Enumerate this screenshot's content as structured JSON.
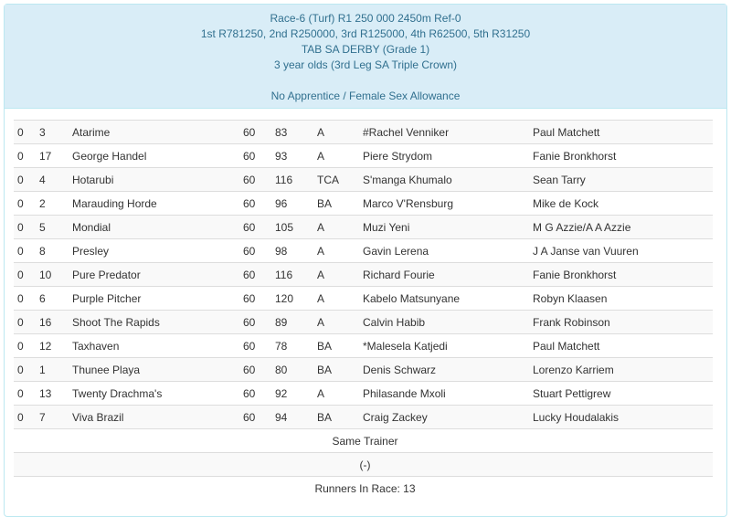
{
  "header": {
    "line1": "Race-6 (Turf) R1 250 000 2450m Ref-0",
    "line2": "1st R781250, 2nd R250000, 3rd R125000, 4th R62500, 5th R31250",
    "line3": "TAB SA DERBY (Grade 1)",
    "line4": "3 year olds (3rd Leg SA Triple Crown)",
    "line5": "No Apprentice / Female Sex Allowance"
  },
  "runners": [
    [
      "0",
      "3",
      "Atarime",
      "60",
      "83",
      "A",
      "#Rachel Venniker",
      "Paul Matchett"
    ],
    [
      "0",
      "17",
      "George Handel",
      "60",
      "93",
      "A",
      "Piere Strydom",
      "Fanie Bronkhorst"
    ],
    [
      "0",
      "4",
      "Hotarubi",
      "60",
      "116",
      "TCA",
      "S'manga Khumalo",
      "Sean Tarry"
    ],
    [
      "0",
      "2",
      "Marauding Horde",
      "60",
      "96",
      "BA",
      "Marco V'Rensburg",
      "Mike de Kock"
    ],
    [
      "0",
      "5",
      "Mondial",
      "60",
      "105",
      "A",
      "Muzi Yeni",
      "M G Azzie/A A Azzie"
    ],
    [
      "0",
      "8",
      "Presley",
      "60",
      "98",
      "A",
      "Gavin Lerena",
      "J A Janse van Vuuren"
    ],
    [
      "0",
      "10",
      "Pure Predator",
      "60",
      "116",
      "A",
      "Richard Fourie",
      "Fanie Bronkhorst"
    ],
    [
      "0",
      "6",
      "Purple Pitcher",
      "60",
      "120",
      "A",
      "Kabelo Matsunyane",
      "Robyn Klaasen"
    ],
    [
      "0",
      "16",
      "Shoot The Rapids",
      "60",
      "89",
      "A",
      "Calvin Habib",
      "Frank Robinson"
    ],
    [
      "0",
      "12",
      "Taxhaven",
      "60",
      "78",
      "BA",
      "*Malesela Katjedi",
      "Paul Matchett"
    ],
    [
      "0",
      "1",
      "Thunee Playa",
      "60",
      "80",
      "BA",
      "Denis Schwarz",
      "Lorenzo Karriem"
    ],
    [
      "0",
      "13",
      "Twenty Drachma's",
      "60",
      "92",
      "A",
      "Philasande Mxoli",
      "Stuart Pettigrew"
    ],
    [
      "0",
      "7",
      "Viva Brazil",
      "60",
      "94",
      "BA",
      "Craig Zackey",
      "Lucky Houdalakis"
    ]
  ],
  "footer": {
    "same_trainer": "Same Trainer",
    "same_trainer_value": "(-)",
    "runners_count": "Runners In Race: 13"
  }
}
